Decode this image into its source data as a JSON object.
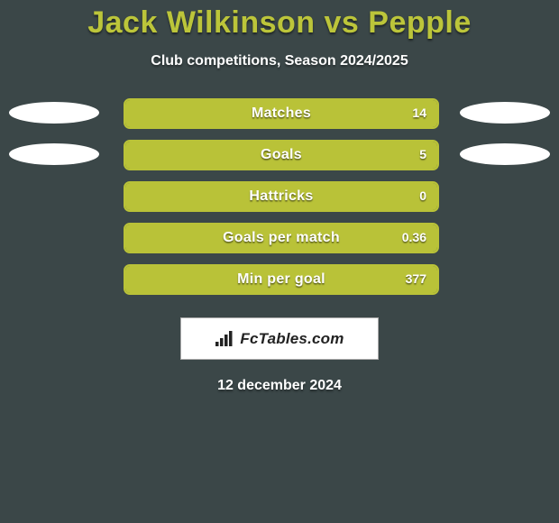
{
  "background_color": "#3b4748",
  "title": {
    "text": "Jack Wilkinson vs Pepple",
    "color": "#bcc53a",
    "fontsize": 34,
    "fontweight": 800
  },
  "subtitle": {
    "text": "Club competitions, Season 2024/2025",
    "fontsize": 16,
    "color": "#ffffff"
  },
  "bar_style": {
    "border_color": "#b9c238",
    "fill_color": "#b9c238",
    "empty_color": "transparent",
    "border_radius": 7,
    "pill_width": 346,
    "pill_height": 30,
    "label_color": "#ffffff",
    "label_fontsize": 16,
    "value_fontsize": 14
  },
  "avatars": {
    "width": 100,
    "height": 24,
    "color": "#ffffff",
    "show_on_rows": [
      0,
      1
    ]
  },
  "rows": [
    {
      "label": "Matches",
      "left_val": "",
      "right_val": "14",
      "left_pct": 0,
      "right_pct": 100
    },
    {
      "label": "Goals",
      "left_val": "",
      "right_val": "5",
      "left_pct": 0,
      "right_pct": 100
    },
    {
      "label": "Hattricks",
      "left_val": "",
      "right_val": "0",
      "left_pct": 0,
      "right_pct": 100
    },
    {
      "label": "Goals per match",
      "left_val": "",
      "right_val": "0.36",
      "left_pct": 0,
      "right_pct": 100
    },
    {
      "label": "Min per goal",
      "left_val": "",
      "right_val": "377",
      "left_pct": 0,
      "right_pct": 100
    }
  ],
  "logo_text": "FcTables.com",
  "date_text": "12 december 2024"
}
